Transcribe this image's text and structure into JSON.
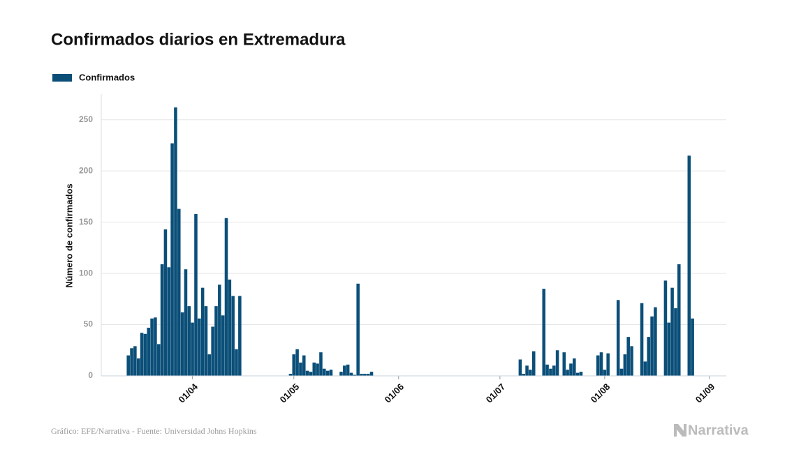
{
  "chart_data": {
    "type": "bar",
    "title": "Confirmados diarios en Extremadura",
    "y_label": "Número de confirmados",
    "x": [
      "13/03",
      "14/03",
      "15/03",
      "16/03",
      "17/03",
      "18/03",
      "19/03",
      "20/03",
      "21/03",
      "22/03",
      "23/03",
      "24/03",
      "25/03",
      "26/03",
      "27/03",
      "28/03",
      "29/03",
      "30/03",
      "31/03",
      "01/04",
      "02/04",
      "03/04",
      "04/04",
      "05/04",
      "06/04",
      "07/04",
      "08/04",
      "09/04",
      "10/04",
      "11/04",
      "12/04",
      "13/04",
      "14/04",
      "15/04",
      "30/04",
      "01/05",
      "02/05",
      "03/05",
      "04/05",
      "05/05",
      "06/05",
      "07/05",
      "08/05",
      "09/05",
      "10/05",
      "11/05",
      "12/05",
      "15/05",
      "16/05",
      "17/05",
      "18/05",
      "19/05",
      "20/05",
      "21/05",
      "22/05",
      "23/05",
      "24/05",
      "07/07",
      "08/07",
      "09/07",
      "10/07",
      "11/07",
      "14/07",
      "15/07",
      "16/07",
      "17/07",
      "18/07",
      "20/07",
      "21/07",
      "22/07",
      "23/07",
      "24/07",
      "25/07",
      "30/07",
      "31/07",
      "01/08",
      "02/08",
      "05/08",
      "06/08",
      "07/08",
      "08/08",
      "09/08",
      "12/08",
      "13/08",
      "14/08",
      "15/08",
      "16/08",
      "19/08",
      "20/08",
      "21/08",
      "22/08",
      "23/08",
      "26/08",
      "27/08"
    ],
    "series": [
      {
        "name": "Confirmados",
        "color": "#0b4f79",
        "values": [
          20,
          27,
          29,
          17,
          42,
          41,
          47,
          56,
          57,
          31,
          109,
          143,
          106,
          227,
          262,
          163,
          62,
          104,
          68,
          52,
          158,
          56,
          86,
          68,
          21,
          48,
          68,
          89,
          59,
          154,
          94,
          78,
          26,
          78,
          2,
          21,
          26,
          13,
          20,
          5,
          4,
          13,
          12,
          23,
          7,
          5,
          6,
          4,
          10,
          11,
          3,
          1,
          90,
          2,
          2,
          2,
          4,
          16,
          2,
          10,
          6,
          24,
          85,
          11,
          7,
          10,
          25,
          23,
          6,
          12,
          17,
          3,
          4,
          20,
          23,
          6,
          22,
          74,
          7,
          21,
          38,
          29,
          71,
          14,
          38,
          58,
          67,
          93,
          52,
          86,
          66,
          109,
          215,
          56
        ]
      }
    ],
    "xlim": [
      "05/03",
      "06/09"
    ],
    "xticks": [
      "01/04",
      "01/05",
      "01/06",
      "01/07",
      "01/08",
      "01/09"
    ],
    "ylim": [
      0,
      275
    ],
    "yticks": [
      0,
      50,
      100,
      150,
      200,
      250
    ],
    "grid": true,
    "legend": "top-left"
  },
  "source": "Gráfico: EFE/Narrativa - Fuente: Universidad Johns Hopkins",
  "logo": "Narrativa"
}
